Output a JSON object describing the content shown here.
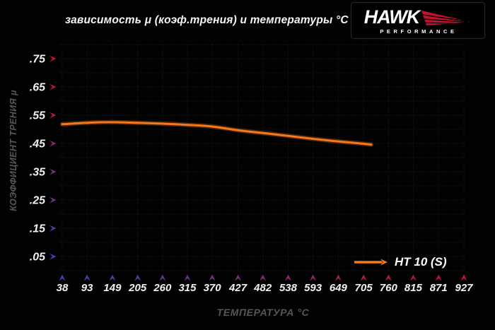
{
  "title": "зависимость μ (коэф.трения) и температуры °C",
  "logo": {
    "brand": "HAWK",
    "tagline": "PERFORMANCE",
    "wing_color": "#c8102e"
  },
  "legend": {
    "label": "HT 10 (S)",
    "line_color": "#f5791b"
  },
  "chart_data": {
    "type": "line",
    "title": "зависимость μ (коэф.трения) и температуры °C",
    "xlabel": "ТЕМПЕРАТУРА °C",
    "ylabel": "КОЭФФИЦИЕНТ ТРЕНИЯ μ",
    "x_ticks": [
      38,
      93,
      149,
      205,
      260,
      315,
      370,
      427,
      482,
      538,
      593,
      649,
      705,
      760,
      815,
      871,
      927
    ],
    "y_ticks": [
      0.05,
      0.15,
      0.25,
      0.35,
      0.45,
      0.55,
      0.65,
      0.75
    ],
    "y_tick_labels": [
      ".05",
      ".15",
      ".25",
      ".35",
      ".45",
      ".55",
      ".65",
      ".75"
    ],
    "xlim": [
      38,
      927
    ],
    "ylim": [
      0,
      0.8
    ],
    "grid": "dotted",
    "grid_color": "#232323",
    "legend_position": "bottom-right",
    "axis_arrow_colors": {
      "cold": "#3c44b4",
      "hot": "#c81030"
    },
    "series": [
      {
        "name": "HT 10 (S)",
        "color": "#f5791b",
        "points": [
          [
            38,
            0.518
          ],
          [
            93,
            0.524
          ],
          [
            149,
            0.526
          ],
          [
            205,
            0.523
          ],
          [
            260,
            0.52
          ],
          [
            315,
            0.516
          ],
          [
            370,
            0.511
          ],
          [
            427,
            0.496
          ],
          [
            482,
            0.487
          ],
          [
            538,
            0.477
          ],
          [
            593,
            0.466
          ],
          [
            649,
            0.457
          ],
          [
            705,
            0.449
          ],
          [
            722,
            0.446
          ]
        ]
      }
    ]
  }
}
